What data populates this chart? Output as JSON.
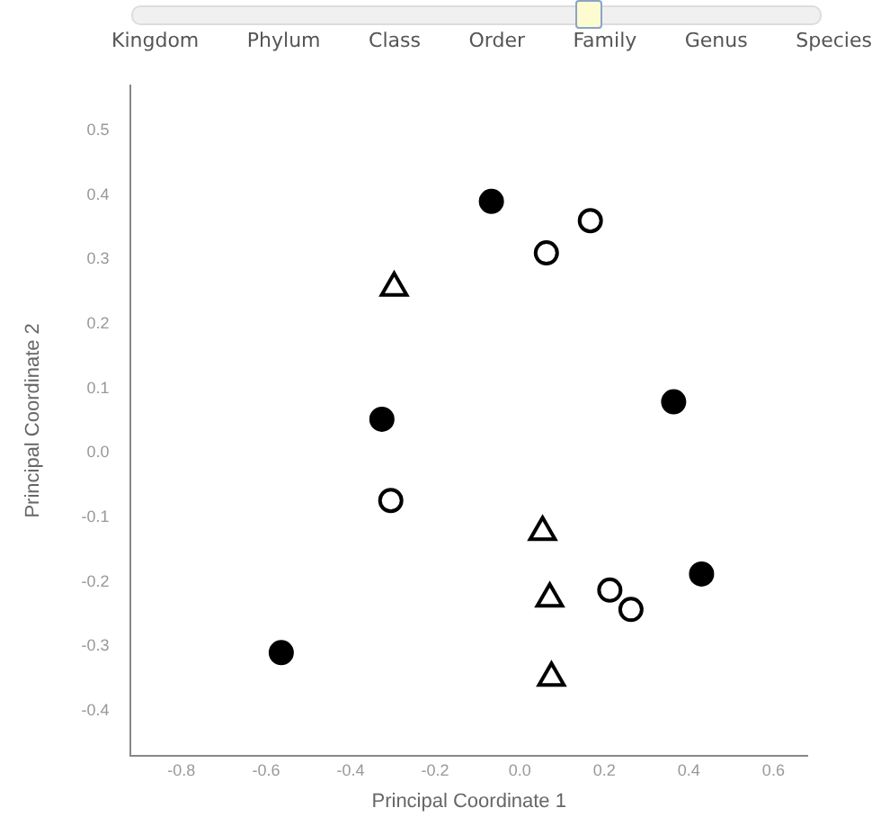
{
  "chart_data": {
    "type": "scatter",
    "xlabel": "Principal Coordinate 1",
    "ylabel": "Principal Coordinate 2",
    "annotations": [
      "Kingdom",
      "Phylum",
      "Class",
      "Order",
      "Family",
      "Genus",
      "Species"
    ],
    "xlim": [
      -0.92,
      0.68
    ],
    "xticks": [
      -0.8,
      -0.6,
      -0.4,
      -0.2,
      {
        "value": 0,
        "label": "0.0"
      },
      0.2,
      0.4,
      0.6
    ],
    "ylim": [
      -0.47,
      0.57
    ],
    "yticks": [
      -0.4,
      -0.3,
      -0.2,
      -0.1,
      {
        "value": 0,
        "label": "0.0"
      },
      0.1,
      0.2,
      0.3,
      0.4,
      0.5
    ],
    "grid": false,
    "legend": false,
    "series": [
      {
        "color": "#000000",
        "marker": "circle",
        "x": [
          -0.067,
          -0.326,
          0.364,
          0.43,
          -0.564
        ],
        "values": [
          0.39,
          0.052,
          0.079,
          -0.188,
          -0.31
        ]
      },
      {
        "color": "#000000",
        "marker": "circle",
        "x": [
          0.063,
          0.167,
          -0.305,
          0.213,
          0.263
        ],
        "values": [
          0.31,
          0.36,
          -0.074,
          -0.213,
          -0.243
        ]
      },
      {
        "color": "#000000",
        "marker": "triangle",
        "x": [
          -0.297,
          0.054,
          0.071,
          0.075
        ],
        "values": [
          0.256,
          -0.123,
          -0.226,
          -0.349
        ]
      }
    ]
  }
}
